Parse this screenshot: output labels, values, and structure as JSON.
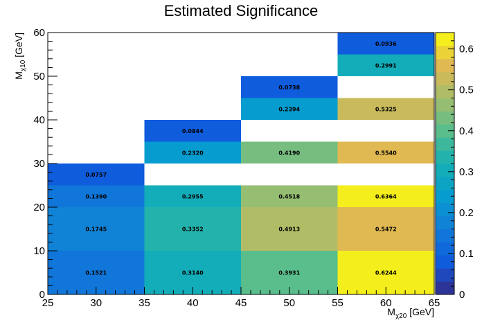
{
  "chart_data": {
    "type": "heatmap",
    "title": "Estimated Significance",
    "xlabel": {
      "main": "M",
      "sub": "χ20",
      "unit": " [GeV]"
    },
    "ylabel": {
      "main": "M",
      "sub": "χ10",
      "unit": " [GeV]"
    },
    "xlim": [
      25,
      65
    ],
    "ylim": [
      0,
      60
    ],
    "x_ticks": [
      25,
      30,
      35,
      40,
      45,
      50,
      55,
      60,
      65
    ],
    "y_ticks": [
      0,
      10,
      20,
      30,
      40,
      50,
      60
    ],
    "colorbar": {
      "range": [
        0,
        0.64
      ],
      "ticks": [
        0,
        0.1,
        0.2,
        0.3,
        0.4,
        0.5,
        0.6
      ]
    },
    "cells": [
      {
        "x": [
          25,
          35
        ],
        "y": [
          0,
          10
        ],
        "value": 0.1521,
        "label": "0.1521"
      },
      {
        "x": [
          25,
          35
        ],
        "y": [
          10,
          20
        ],
        "value": 0.1745,
        "label": "0.1745"
      },
      {
        "x": [
          25,
          35
        ],
        "y": [
          20,
          25
        ],
        "value": 0.139,
        "label": "0.1390"
      },
      {
        "x": [
          25,
          35
        ],
        "y": [
          25,
          30
        ],
        "value": 0.0757,
        "label": "0.0757"
      },
      {
        "x": [
          35,
          45
        ],
        "y": [
          0,
          10
        ],
        "value": 0.314,
        "label": "0.3140"
      },
      {
        "x": [
          35,
          45
        ],
        "y": [
          10,
          20
        ],
        "value": 0.3352,
        "label": "0.3352"
      },
      {
        "x": [
          35,
          45
        ],
        "y": [
          20,
          25
        ],
        "value": 0.2955,
        "label": "0.2955"
      },
      {
        "x": [
          35,
          45
        ],
        "y": [
          30,
          35
        ],
        "value": 0.232,
        "label": "0.2320"
      },
      {
        "x": [
          35,
          45
        ],
        "y": [
          35,
          40
        ],
        "value": 0.0844,
        "label": "0.0844"
      },
      {
        "x": [
          45,
          55
        ],
        "y": [
          0,
          10
        ],
        "value": 0.3931,
        "label": "0.3931"
      },
      {
        "x": [
          45,
          55
        ],
        "y": [
          10,
          20
        ],
        "value": 0.4913,
        "label": "0.4913"
      },
      {
        "x": [
          45,
          55
        ],
        "y": [
          20,
          25
        ],
        "value": 0.4518,
        "label": "0.4518"
      },
      {
        "x": [
          45,
          55
        ],
        "y": [
          30,
          35
        ],
        "value": 0.419,
        "label": "0.4190"
      },
      {
        "x": [
          45,
          55
        ],
        "y": [
          40,
          45
        ],
        "value": 0.2394,
        "label": "0.2394"
      },
      {
        "x": [
          45,
          55
        ],
        "y": [
          45,
          50
        ],
        "value": 0.0738,
        "label": "0.0738"
      },
      {
        "x": [
          55,
          65
        ],
        "y": [
          0,
          10
        ],
        "value": 0.6244,
        "label": "0.6244"
      },
      {
        "x": [
          55,
          65
        ],
        "y": [
          10,
          20
        ],
        "value": 0.5472,
        "label": "0.5472"
      },
      {
        "x": [
          55,
          65
        ],
        "y": [
          20,
          25
        ],
        "value": 0.6364,
        "label": "0.6364"
      },
      {
        "x": [
          55,
          65
        ],
        "y": [
          30,
          35
        ],
        "value": 0.554,
        "label": "0.5540"
      },
      {
        "x": [
          55,
          65
        ],
        "y": [
          40,
          45
        ],
        "value": 0.5325,
        "label": "0.5325"
      },
      {
        "x": [
          55,
          65
        ],
        "y": [
          50,
          55
        ],
        "value": 0.2991,
        "label": "0.2991"
      },
      {
        "x": [
          55,
          65
        ],
        "y": [
          55,
          60
        ],
        "value": 0.0936,
        "label": "0.0936"
      }
    ]
  }
}
